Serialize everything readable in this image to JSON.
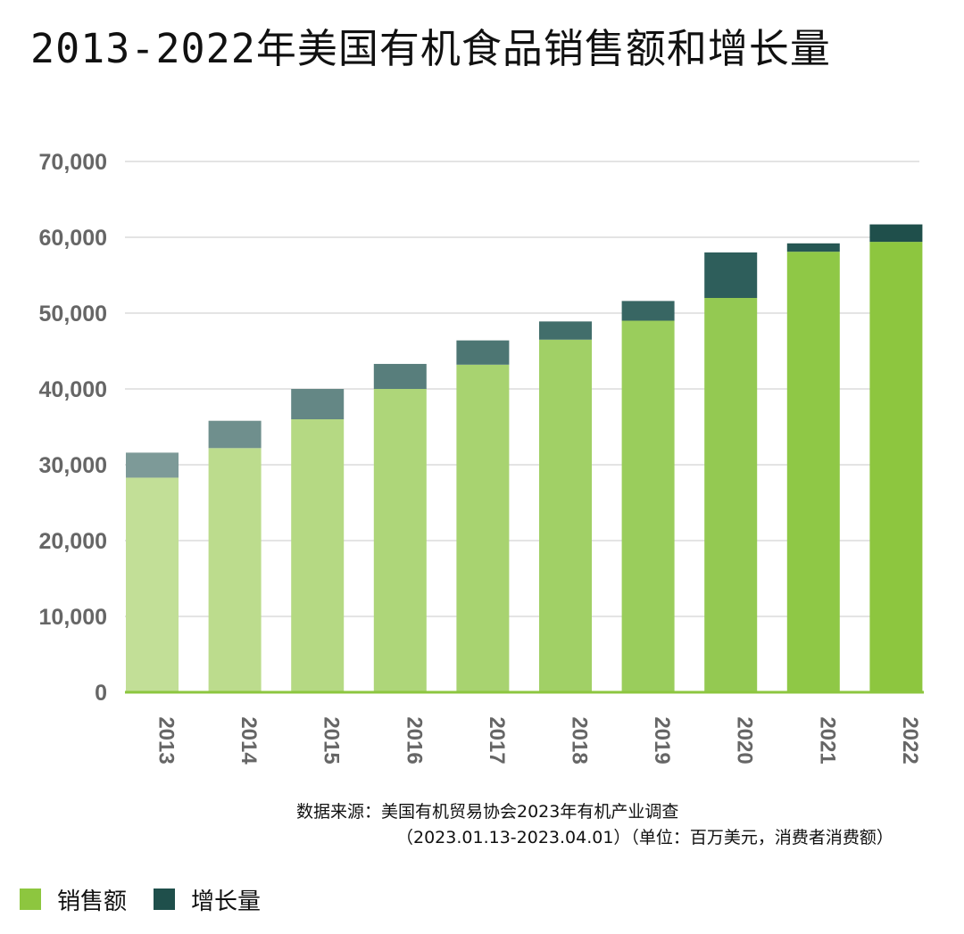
{
  "colors": {
    "sales_legend": "#8dc63f",
    "growth_legend": "#1f4f4b",
    "grid": "#dcdcdc",
    "axis": "#8cc63f",
    "tick_text": "#666666"
  },
  "chart_data": {
    "type": "bar",
    "stacked": true,
    "title": "2013-2022年美国有机食品销售额和增长量",
    "categories": [
      "2013",
      "2014",
      "2015",
      "2016",
      "2017",
      "2018",
      "2019",
      "2020",
      "2021",
      "2022"
    ],
    "series": [
      {
        "name": "销售额",
        "values": [
          28300,
          32200,
          36000,
          40000,
          43200,
          46500,
          49000,
          52000,
          58100,
          59400
        ]
      },
      {
        "name": "增长量",
        "values": [
          3300,
          3600,
          4000,
          3300,
          3200,
          2400,
          2600,
          6000,
          1100,
          2300
        ]
      }
    ],
    "ylim": [
      0,
      70000
    ],
    "yticks": [
      "0",
      "10,000",
      "20,000",
      "30,000",
      "40,000",
      "50,000",
      "60,000",
      "70,000"
    ],
    "xlabel": "",
    "ylabel": "",
    "grid": true,
    "legend_position": "bottom-left",
    "source_line1": "数据来源：美国有机贸易协会2023年有机产业调查",
    "source_line2": "（2023.01.13-2023.04.01）（单位：百万美元，消费者消费额）"
  }
}
